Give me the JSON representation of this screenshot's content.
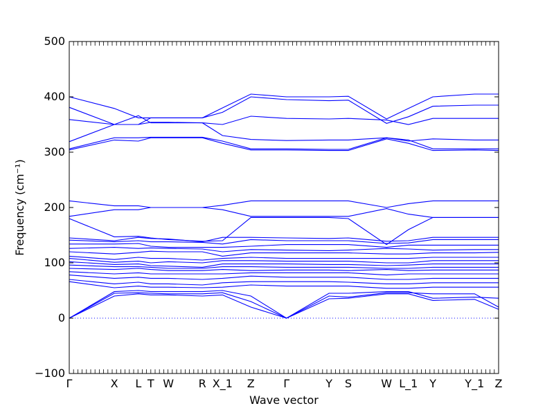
{
  "chart_data": {
    "type": "line",
    "xlabel": "Wave vector",
    "ylabel": "Frequency (cm⁻¹)",
    "ylim": [
      -100,
      500
    ],
    "yticks": [
      -100,
      0,
      100,
      200,
      300,
      400,
      500
    ],
    "grid": false,
    "line_color": "#0000ff",
    "zero_line": {
      "y": 0,
      "style": "dotted",
      "color": "#0000ff"
    },
    "kpath": [
      {
        "label": "Γ",
        "x": 0.0
      },
      {
        "label": "X",
        "x": 0.105
      },
      {
        "label": "L",
        "x": 0.161
      },
      {
        "label": "T",
        "x": 0.19
      },
      {
        "label": "W",
        "x": 0.231
      },
      {
        "label": "R",
        "x": 0.31
      },
      {
        "label": "X_1",
        "x": 0.357
      },
      {
        "label": "Z",
        "x": 0.423
      },
      {
        "label": "Γ",
        "x": 0.506
      },
      {
        "label": "Y",
        "x": 0.605
      },
      {
        "label": "S",
        "x": 0.65
      },
      {
        "label": "W",
        "x": 0.739
      },
      {
        "label": "L_1",
        "x": 0.79
      },
      {
        "label": "Y",
        "x": 0.847
      },
      {
        "label": "Y_1",
        "x": 0.944
      },
      {
        "label": "Z",
        "x": 1.0
      }
    ],
    "series": [
      {
        "values": [
          400,
          379,
          362,
          362,
          362,
          362,
          380,
          405,
          400,
          400,
          401,
          360,
          379,
          400,
          405,
          405
        ]
      },
      {
        "values": [
          381,
          350,
          350,
          362,
          362,
          362,
          372,
          400,
          395,
          393,
          394,
          352,
          364,
          383,
          385,
          385
        ]
      },
      {
        "values": [
          359,
          350,
          350,
          354,
          354,
          353,
          350,
          365,
          361,
          360,
          361,
          358,
          350,
          361,
          361,
          361
        ]
      },
      {
        "values": [
          319,
          350,
          366,
          353,
          353,
          353,
          330,
          323,
          321,
          322,
          322,
          326,
          320,
          324,
          322,
          322
        ]
      },
      {
        "values": [
          306,
          326,
          326,
          327,
          327,
          327,
          320,
          306,
          306,
          305,
          305,
          326,
          322,
          306,
          306,
          306
        ]
      },
      {
        "values": [
          304,
          322,
          320,
          326,
          326,
          326,
          316,
          304,
          304,
          303,
          303,
          324,
          316,
          303,
          304,
          303
        ]
      },
      {
        "values": [
          212,
          203,
          203,
          200,
          200,
          200,
          204,
          212,
          212,
          212,
          212,
          200,
          207,
          212,
          212,
          212
        ]
      },
      {
        "values": [
          184,
          196,
          196,
          200,
          200,
          200,
          196,
          184,
          184,
          184,
          184,
          198,
          188,
          182,
          182,
          182
        ]
      },
      {
        "values": [
          180,
          147,
          148,
          145,
          142,
          139,
          140,
          182,
          182,
          182,
          180,
          133,
          160,
          182,
          182,
          182
        ]
      },
      {
        "values": [
          145,
          140,
          146,
          144,
          143,
          138,
          146,
          146,
          145,
          144,
          145,
          139,
          140,
          146,
          146,
          146
        ]
      },
      {
        "values": [
          141,
          138,
          140,
          138,
          138,
          137,
          134,
          142,
          140,
          140,
          140,
          135,
          136,
          142,
          142,
          142
        ]
      },
      {
        "values": [
          134,
          134,
          135,
          130,
          128,
          128,
          128,
          130,
          133,
          133,
          133,
          128,
          132,
          132,
          132,
          132
        ]
      },
      {
        "values": [
          126,
          128,
          126,
          127,
          126,
          125,
          120,
          124,
          123,
          122,
          123,
          126,
          125,
          123,
          124,
          124
        ]
      },
      {
        "values": [
          120,
          116,
          119,
          121,
          120,
          120,
          112,
          118,
          118,
          118,
          118,
          116,
          116,
          118,
          118,
          119
        ]
      },
      {
        "values": [
          112,
          106,
          110,
          108,
          108,
          105,
          108,
          110,
          108,
          108,
          108,
          108,
          108,
          110,
          110,
          110
        ]
      },
      {
        "values": [
          108,
          101,
          103,
          100,
          102,
          100,
          104,
          104,
          103,
          103,
          103,
          100,
          100,
          104,
          104,
          104
        ]
      },
      {
        "values": [
          102,
          97,
          98,
          95,
          94,
          92,
          98,
          98,
          98,
          97,
          97,
          95,
          96,
          98,
          98,
          98
        ]
      },
      {
        "values": [
          96,
          93,
          93,
          92,
          90,
          90,
          93,
          93,
          92,
          92,
          92,
          90,
          90,
          92,
          92,
          92
        ]
      },
      {
        "values": [
          90,
          88,
          90,
          88,
          86,
          86,
          88,
          86,
          87,
          87,
          86,
          88,
          86,
          87,
          87,
          87
        ]
      },
      {
        "values": [
          84,
          80,
          82,
          80,
          80,
          80,
          80,
          82,
          82,
          82,
          82,
          78,
          80,
          80,
          80,
          80
        ]
      },
      {
        "values": [
          78,
          72,
          74,
          72,
          72,
          70,
          72,
          76,
          74,
          74,
          74,
          70,
          70,
          72,
          72,
          72
        ]
      },
      {
        "values": [
          70,
          62,
          65,
          62,
          62,
          60,
          64,
          66,
          66,
          66,
          65,
          62,
          62,
          64,
          64,
          64
        ]
      },
      {
        "values": [
          66,
          55,
          58,
          56,
          56,
          55,
          56,
          60,
          58,
          58,
          58,
          54,
          54,
          56,
          56,
          56
        ]
      },
      {
        "values": [
          0,
          48,
          50,
          48,
          48,
          48,
          50,
          40,
          0,
          45,
          45,
          48,
          48,
          36,
          38,
          36
        ]
      },
      {
        "values": [
          0,
          45,
          46,
          45,
          44,
          44,
          46,
          30,
          0,
          40,
          38,
          46,
          46,
          44,
          44,
          20
        ]
      },
      {
        "values": [
          0,
          40,
          44,
          42,
          42,
          40,
          42,
          20,
          0,
          35,
          36,
          44,
          44,
          32,
          34,
          16
        ]
      }
    ]
  }
}
